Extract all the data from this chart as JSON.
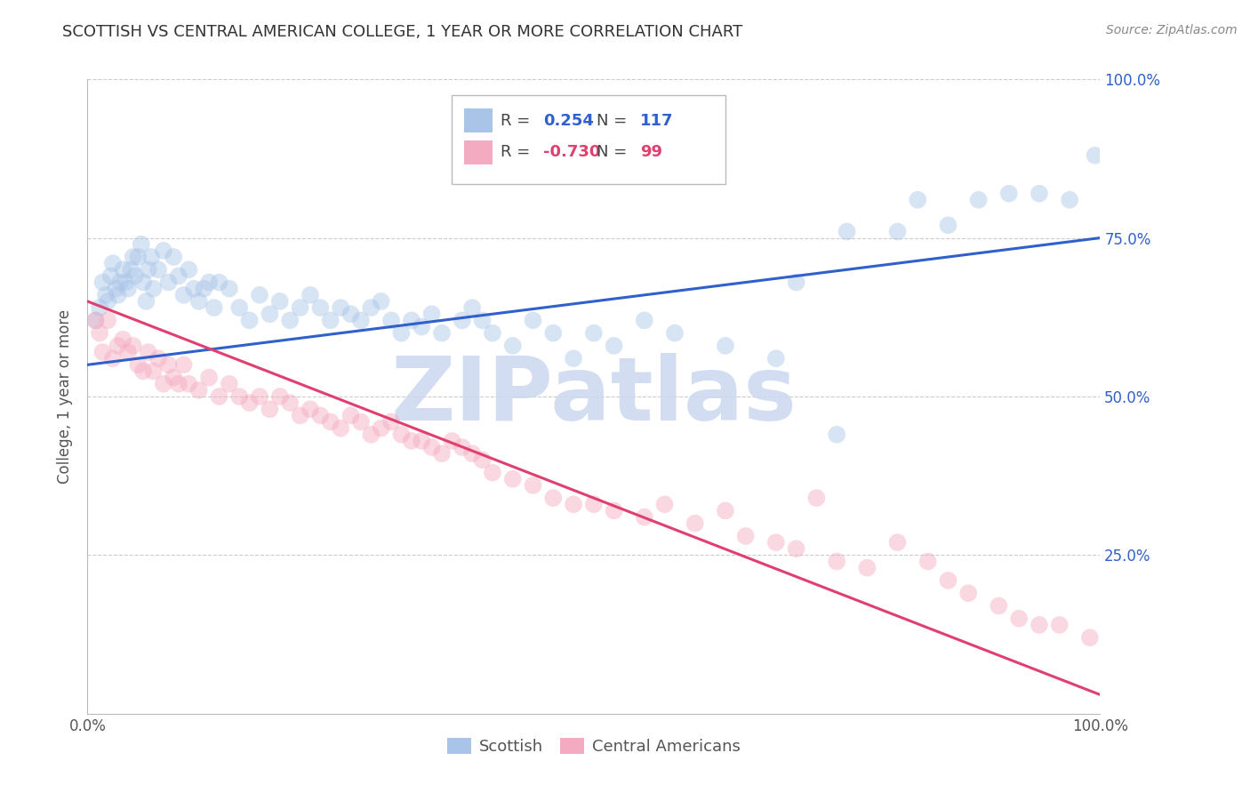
{
  "title": "SCOTTISH VS CENTRAL AMERICAN COLLEGE, 1 YEAR OR MORE CORRELATION CHART",
  "source": "Source: ZipAtlas.com",
  "ylabel": "College, 1 year or more",
  "blue_R": 0.254,
  "blue_N": 117,
  "pink_R": -0.73,
  "pink_N": 99,
  "blue_color": "#a8c4e8",
  "pink_color": "#f4aac0",
  "blue_line_color": "#3060cc",
  "pink_line_color": "#e04070",
  "background_color": "#ffffff",
  "grid_color": "#cccccc",
  "watermark_color": "#ccd8f0",
  "watermark_text": "ZIPatlas",
  "blue_trend_x0": 0.0,
  "blue_trend_y0": 55.0,
  "blue_trend_x1": 100.0,
  "blue_trend_y1": 75.0,
  "pink_trend_x0": 0.0,
  "pink_trend_y0": 65.0,
  "pink_trend_x1": 100.0,
  "pink_trend_y1": 3.0,
  "xlim": [
    0,
    100
  ],
  "ylim": [
    0,
    100
  ],
  "yticks": [
    25,
    50,
    75,
    100
  ],
  "ytick_labels": [
    "25.0%",
    "50.0%",
    "75.0%",
    "100.0%"
  ],
  "xtick_labels_vals": [
    0,
    100
  ],
  "xtick_labels": [
    "0.0%",
    "100.0%"
  ],
  "marker_size": 200,
  "marker_alpha": 0.45,
  "line_width": 2.2,
  "title_fontsize": 13,
  "axis_label_fontsize": 12,
  "tick_fontsize": 12,
  "legend_fontsize": 13,
  "blue_scatter_x": [
    0.8,
    1.2,
    1.5,
    1.8,
    2.0,
    2.3,
    2.5,
    2.8,
    3.0,
    3.2,
    3.5,
    3.8,
    4.0,
    4.3,
    4.5,
    4.7,
    5.0,
    5.3,
    5.5,
    5.8,
    6.0,
    6.3,
    6.5,
    7.0,
    7.5,
    8.0,
    8.5,
    9.0,
    9.5,
    10.0,
    10.5,
    11.0,
    11.5,
    12.0,
    12.5,
    13.0,
    14.0,
    15.0,
    16.0,
    17.0,
    18.0,
    19.0,
    20.0,
    21.0,
    22.0,
    23.0,
    24.0,
    25.0,
    26.0,
    27.0,
    28.0,
    29.0,
    30.0,
    31.0,
    32.0,
    33.0,
    34.0,
    35.0,
    37.0,
    38.0,
    39.0,
    40.0,
    42.0,
    44.0,
    46.0,
    48.0,
    50.0,
    52.0,
    55.0,
    58.0,
    63.0,
    68.0,
    70.0,
    74.0,
    75.0,
    80.0,
    82.0,
    85.0,
    88.0,
    91.0,
    94.0,
    97.0,
    99.5
  ],
  "blue_scatter_y": [
    62.0,
    64.0,
    68.0,
    66.0,
    65.0,
    69.0,
    71.0,
    67.0,
    66.0,
    68.0,
    70.0,
    68.0,
    67.0,
    70.0,
    72.0,
    69.0,
    72.0,
    74.0,
    68.0,
    65.0,
    70.0,
    72.0,
    67.0,
    70.0,
    73.0,
    68.0,
    72.0,
    69.0,
    66.0,
    70.0,
    67.0,
    65.0,
    67.0,
    68.0,
    64.0,
    68.0,
    67.0,
    64.0,
    62.0,
    66.0,
    63.0,
    65.0,
    62.0,
    64.0,
    66.0,
    64.0,
    62.0,
    64.0,
    63.0,
    62.0,
    64.0,
    65.0,
    62.0,
    60.0,
    62.0,
    61.0,
    63.0,
    60.0,
    62.0,
    64.0,
    62.0,
    60.0,
    58.0,
    62.0,
    60.0,
    56.0,
    60.0,
    58.0,
    62.0,
    60.0,
    58.0,
    56.0,
    68.0,
    44.0,
    76.0,
    76.0,
    81.0,
    77.0,
    81.0,
    82.0,
    82.0,
    81.0,
    88.0
  ],
  "pink_scatter_x": [
    0.8,
    1.2,
    1.5,
    2.0,
    2.5,
    3.0,
    3.5,
    4.0,
    4.5,
    5.0,
    5.5,
    6.0,
    6.5,
    7.0,
    7.5,
    8.0,
    8.5,
    9.0,
    9.5,
    10.0,
    11.0,
    12.0,
    13.0,
    14.0,
    15.0,
    16.0,
    17.0,
    18.0,
    19.0,
    20.0,
    21.0,
    22.0,
    23.0,
    24.0,
    25.0,
    26.0,
    27.0,
    28.0,
    29.0,
    30.0,
    31.0,
    32.0,
    33.0,
    34.0,
    35.0,
    36.0,
    37.0,
    38.0,
    39.0,
    40.0,
    42.0,
    44.0,
    46.0,
    48.0,
    50.0,
    52.0,
    55.0,
    57.0,
    60.0,
    63.0,
    65.0,
    68.0,
    70.0,
    72.0,
    74.0,
    77.0,
    80.0,
    83.0,
    85.0,
    87.0,
    90.0,
    92.0,
    94.0,
    96.0,
    99.0
  ],
  "pink_scatter_y": [
    62.0,
    60.0,
    57.0,
    62.0,
    56.0,
    58.0,
    59.0,
    57.0,
    58.0,
    55.0,
    54.0,
    57.0,
    54.0,
    56.0,
    52.0,
    55.0,
    53.0,
    52.0,
    55.0,
    52.0,
    51.0,
    53.0,
    50.0,
    52.0,
    50.0,
    49.0,
    50.0,
    48.0,
    50.0,
    49.0,
    47.0,
    48.0,
    47.0,
    46.0,
    45.0,
    47.0,
    46.0,
    44.0,
    45.0,
    46.0,
    44.0,
    43.0,
    43.0,
    42.0,
    41.0,
    43.0,
    42.0,
    41.0,
    40.0,
    38.0,
    37.0,
    36.0,
    34.0,
    33.0,
    33.0,
    32.0,
    31.0,
    33.0,
    30.0,
    32.0,
    28.0,
    27.0,
    26.0,
    34.0,
    24.0,
    23.0,
    27.0,
    24.0,
    21.0,
    19.0,
    17.0,
    15.0,
    14.0,
    14.0,
    12.0
  ]
}
